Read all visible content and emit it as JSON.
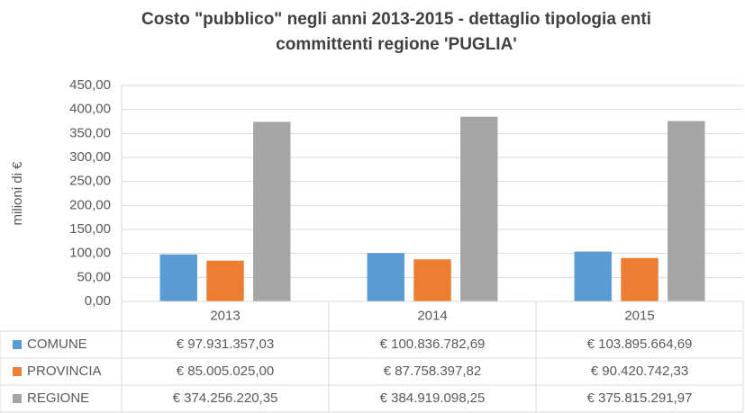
{
  "chart_data": {
    "type": "bar",
    "title": "Costo \"pubblico\" negli anni 2013-2015 - dettaglio tipologia enti",
    "subtitle": "committenti regione 'PUGLIA'",
    "y_label": "milioni di €",
    "categories": [
      "2013",
      "2014",
      "2015"
    ],
    "series": [
      {
        "name": "COMUNE",
        "color": "#5b9bd5",
        "values": [
          97.93135703,
          100.83678269,
          103.89566469
        ],
        "value_labels": [
          "€ 97.931.357,03",
          "€ 100.836.782,69",
          "€ 103.895.664,69"
        ]
      },
      {
        "name": "PROVINCIA",
        "color": "#ed7d31",
        "values": [
          85.005025,
          87.75839782,
          90.42074233
        ],
        "value_labels": [
          "€ 85.005.025,00",
          "€ 87.758.397,82",
          "€ 90.420.742,33"
        ]
      },
      {
        "name": "REGIONE",
        "color": "#a5a5a5",
        "values": [
          374.25622035,
          384.91909825,
          375.81529197
        ],
        "value_labels": [
          "€ 374.256.220,35",
          "€ 384.919.098,25",
          "€ 375.815.291,97"
        ]
      }
    ],
    "ylim": [
      0,
      450
    ],
    "yticks": [
      {
        "value": 0,
        "label": "0,00"
      },
      {
        "value": 50,
        "label": "50,00"
      },
      {
        "value": 100,
        "label": "100,00"
      },
      {
        "value": 150,
        "label": "150,00"
      },
      {
        "value": 200,
        "label": "200,00"
      },
      {
        "value": 250,
        "label": "250,00"
      },
      {
        "value": 300,
        "label": "300,00"
      },
      {
        "value": 350,
        "label": "350,00"
      },
      {
        "value": 400,
        "label": "400,00"
      },
      {
        "value": 450,
        "label": "450,00"
      }
    ],
    "grid": true
  }
}
